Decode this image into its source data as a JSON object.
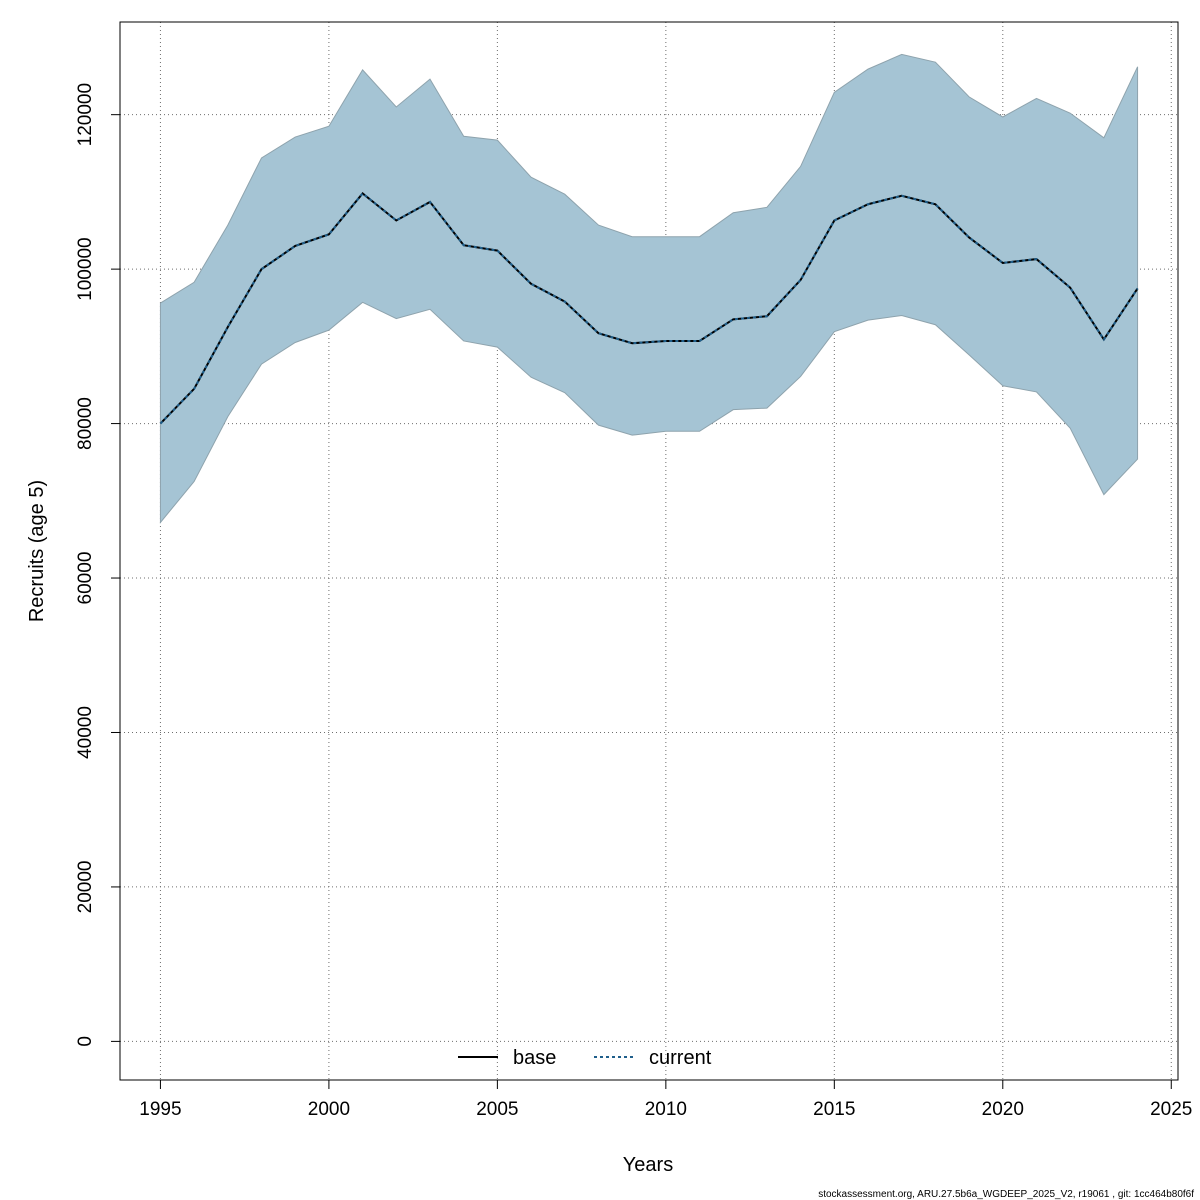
{
  "chart_data": {
    "type": "line",
    "xlabel": "Years",
    "ylabel": "Recruits (age 5)",
    "xlim": [
      1993.8,
      2025.2
    ],
    "ylim": [
      -5000,
      132000
    ],
    "x_ticks": [
      1995,
      2000,
      2005,
      2010,
      2015,
      2020,
      2025
    ],
    "y_ticks": [
      0,
      20000,
      40000,
      60000,
      80000,
      100000,
      120000
    ],
    "grid": true,
    "legend_position": "bottom",
    "x": [
      1995,
      1996,
      1997,
      1998,
      1999,
      2000,
      2001,
      2002,
      2003,
      2004,
      2005,
      2006,
      2007,
      2008,
      2009,
      2010,
      2011,
      2012,
      2013,
      2014,
      2015,
      2016,
      2017,
      2018,
      2019,
      2020,
      2021,
      2022,
      2023,
      2024
    ],
    "series": [
      {
        "name": "base",
        "style": "solid",
        "color": "#000000",
        "values": [
          80000,
          84500,
          92500,
          100000,
          103000,
          104500,
          109800,
          106300,
          108700,
          103100,
          102400,
          98100,
          95800,
          91700,
          90400,
          90700,
          90700,
          93500,
          93900,
          98600,
          106300,
          108400,
          109500,
          108400,
          104100,
          100800,
          101300,
          97600,
          90900,
          97500
        ]
      },
      {
        "name": "current",
        "style": "dotted",
        "color": "#1f5f8b",
        "values": [
          80000,
          84500,
          92500,
          100000,
          103000,
          104500,
          109800,
          106300,
          108700,
          103100,
          102400,
          98100,
          95800,
          91700,
          90400,
          90700,
          90700,
          93500,
          93900,
          98600,
          106300,
          108400,
          109500,
          108400,
          104100,
          100800,
          101300,
          97600,
          90900,
          97500
        ]
      }
    ],
    "confidence_band": {
      "color": "#a5c4d4",
      "lower": [
        67200,
        72500,
        80900,
        87700,
        90500,
        92100,
        95700,
        93600,
        94800,
        90700,
        89900,
        86000,
        84000,
        79800,
        78500,
        79000,
        79000,
        81800,
        82000,
        86100,
        91900,
        93400,
        94000,
        92800,
        88900,
        84900,
        84100,
        79400,
        70800,
        75400
      ],
      "upper": [
        95600,
        98300,
        105700,
        114400,
        117100,
        118500,
        125800,
        121000,
        124600,
        117200,
        116700,
        111900,
        109700,
        105700,
        104200,
        104200,
        104200,
        107300,
        108000,
        113300,
        122900,
        125900,
        127800,
        126800,
        122300,
        119700,
        122100,
        120200,
        117000,
        126200
      ]
    }
  },
  "footer": {
    "text": "stockassessment.org, ARU.27.5b6a_WGDEEP_2025_V2, r19061 , git: 1cc464b80f6f"
  }
}
